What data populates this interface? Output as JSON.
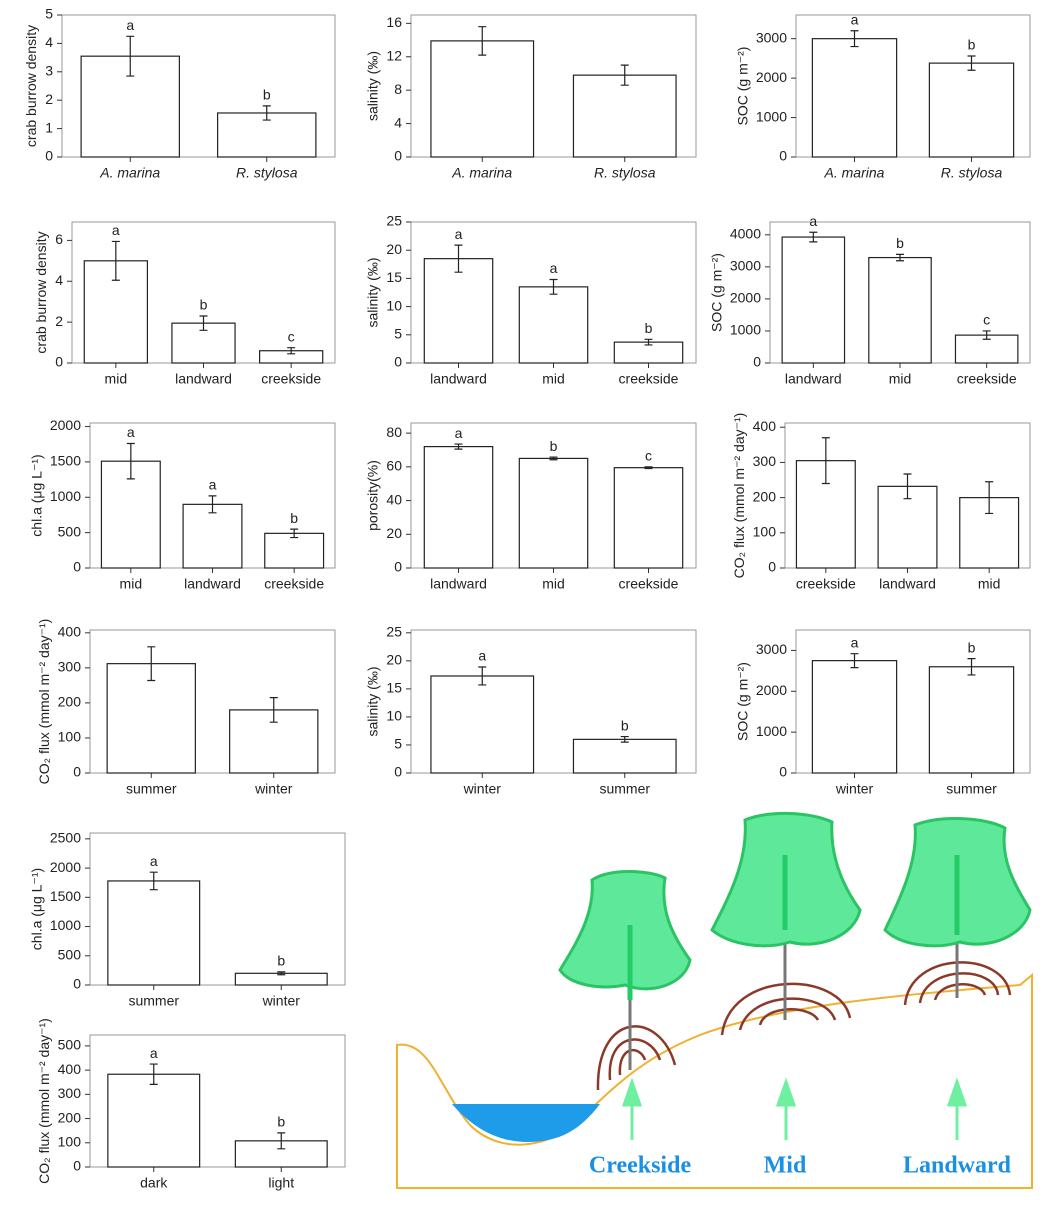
{
  "chart_data": [
    {
      "type": "bar",
      "ylabel": "crab burrow density",
      "categories": [
        "A. marina",
        "R. stylosa"
      ],
      "category_style": "italic",
      "values": [
        3.55,
        1.55
      ],
      "errors": [
        0.7,
        0.25
      ],
      "annotations": [
        "a",
        "b"
      ],
      "ylim": [
        0,
        5
      ],
      "yticks": [
        0,
        1,
        2,
        3,
        4,
        5
      ]
    },
    {
      "type": "bar",
      "ylabel": "salinity (‰)",
      "categories": [
        "A. marina",
        "R. stylosa"
      ],
      "category_style": "italic",
      "values": [
        13.9,
        9.8
      ],
      "errors": [
        1.7,
        1.2
      ],
      "ylim": [
        0,
        17
      ],
      "yticks": [
        0,
        4,
        8,
        12,
        16
      ]
    },
    {
      "type": "bar",
      "ylabel": "SOC (g m⁻²)",
      "categories": [
        "A. marina",
        "R. stylosa"
      ],
      "category_style": "italic",
      "values": [
        3000,
        2380
      ],
      "errors": [
        200,
        180
      ],
      "annotations": [
        "a",
        "b"
      ],
      "ylim": [
        0,
        3600
      ],
      "yticks": [
        0,
        1000,
        2000,
        3000
      ]
    },
    {
      "type": "bar",
      "ylabel": "crab burrow density",
      "categories": [
        "mid",
        "landward",
        "creekside"
      ],
      "values": [
        5.0,
        1.95,
        0.6
      ],
      "errors": [
        0.95,
        0.35,
        0.15
      ],
      "annotations": [
        "a",
        "b",
        "c"
      ],
      "ylim": [
        0,
        6.9
      ],
      "yticks": [
        0,
        2,
        4,
        6
      ]
    },
    {
      "type": "bar",
      "ylabel": "salinity (‰)",
      "categories": [
        "landward",
        "mid",
        "creekside"
      ],
      "values": [
        18.5,
        13.5,
        3.7
      ],
      "errors": [
        2.4,
        1.3,
        0.5
      ],
      "annotations": [
        "a",
        "a",
        "b"
      ],
      "ylim": [
        0,
        25
      ],
      "yticks": [
        0,
        5,
        10,
        15,
        20,
        25
      ]
    },
    {
      "type": "bar",
      "ylabel": "SOC (g m⁻²)",
      "categories": [
        "landward",
        "mid",
        "creekside"
      ],
      "values": [
        3930,
        3290,
        870
      ],
      "errors": [
        150,
        100,
        130
      ],
      "annotations": [
        "a",
        "b",
        "c"
      ],
      "ylim": [
        0,
        4400
      ],
      "yticks": [
        0,
        1000,
        2000,
        3000,
        4000
      ]
    },
    {
      "type": "bar",
      "ylabel": "chl.a (μg L⁻¹)",
      "categories": [
        "mid",
        "landward",
        "creekside"
      ],
      "values": [
        1510,
        900,
        490
      ],
      "errors": [
        250,
        120,
        60
      ],
      "annotations": [
        "a",
        "a",
        "b"
      ],
      "ylim": [
        0,
        2050
      ],
      "yticks": [
        0,
        500,
        1000,
        1500,
        2000
      ]
    },
    {
      "type": "bar",
      "ylabel": "porosity(%)",
      "categories": [
        "landward",
        "mid",
        "creekside"
      ],
      "values": [
        72,
        65,
        59.5
      ],
      "errors": [
        1.5,
        0.8,
        0.5
      ],
      "annotations": [
        "a",
        "b",
        "c"
      ],
      "ylim": [
        0,
        86
      ],
      "yticks": [
        0,
        20,
        40,
        60,
        80
      ]
    },
    {
      "type": "bar",
      "ylabel": "CO₂ flux (mmol m⁻² day⁻¹)",
      "categories": [
        "creekside",
        "landward",
        "mid"
      ],
      "values": [
        305,
        232,
        200
      ],
      "errors": [
        65,
        35,
        45
      ],
      "ylim": [
        0,
        412
      ],
      "yticks": [
        0,
        100,
        200,
        300,
        400
      ]
    },
    {
      "type": "bar",
      "ylabel": "CO₂ flux (mmol m⁻² day⁻¹)",
      "categories": [
        "summer",
        "winter"
      ],
      "values": [
        312,
        180
      ],
      "errors": [
        48,
        35
      ],
      "ylim": [
        0,
        408
      ],
      "yticks": [
        0,
        100,
        200,
        300,
        400
      ]
    },
    {
      "type": "bar",
      "ylabel": "salinity (‰)",
      "categories": [
        "winter",
        "summer"
      ],
      "values": [
        17.3,
        6.0
      ],
      "errors": [
        1.6,
        0.5
      ],
      "annotations": [
        "a",
        "b"
      ],
      "ylim": [
        0,
        25.5
      ],
      "yticks": [
        0,
        5,
        10,
        15,
        20,
        25
      ]
    },
    {
      "type": "bar",
      "ylabel": "SOC (g m⁻²)",
      "categories": [
        "winter",
        "summer"
      ],
      "values": [
        2750,
        2600
      ],
      "errors": [
        170,
        200
      ],
      "annotations": [
        "a",
        "b"
      ],
      "ylim": [
        0,
        3500
      ],
      "yticks": [
        0,
        1000,
        2000,
        3000
      ]
    },
    {
      "type": "bar",
      "ylabel": "chl.a (μg L⁻¹)",
      "categories": [
        "summer",
        "winter"
      ],
      "values": [
        1780,
        200
      ],
      "errors": [
        150,
        25
      ],
      "annotations": [
        "a",
        "b"
      ],
      "ylim": [
        0,
        2600
      ],
      "yticks": [
        0,
        500,
        1000,
        1500,
        2000,
        2500
      ]
    },
    {
      "type": "bar",
      "ylabel": "CO₂ flux (mmol m⁻² day⁻¹)",
      "categories": [
        "dark",
        "light"
      ],
      "values": [
        383,
        108
      ],
      "errors": [
        42,
        33
      ],
      "annotations": [
        "a",
        "b"
      ],
      "ylim": [
        0,
        545
      ],
      "yticks": [
        0,
        100,
        200,
        300,
        400,
        500
      ]
    }
  ],
  "diagram": {
    "labels": [
      "Creekside",
      "Mid",
      "Landward"
    ]
  }
}
